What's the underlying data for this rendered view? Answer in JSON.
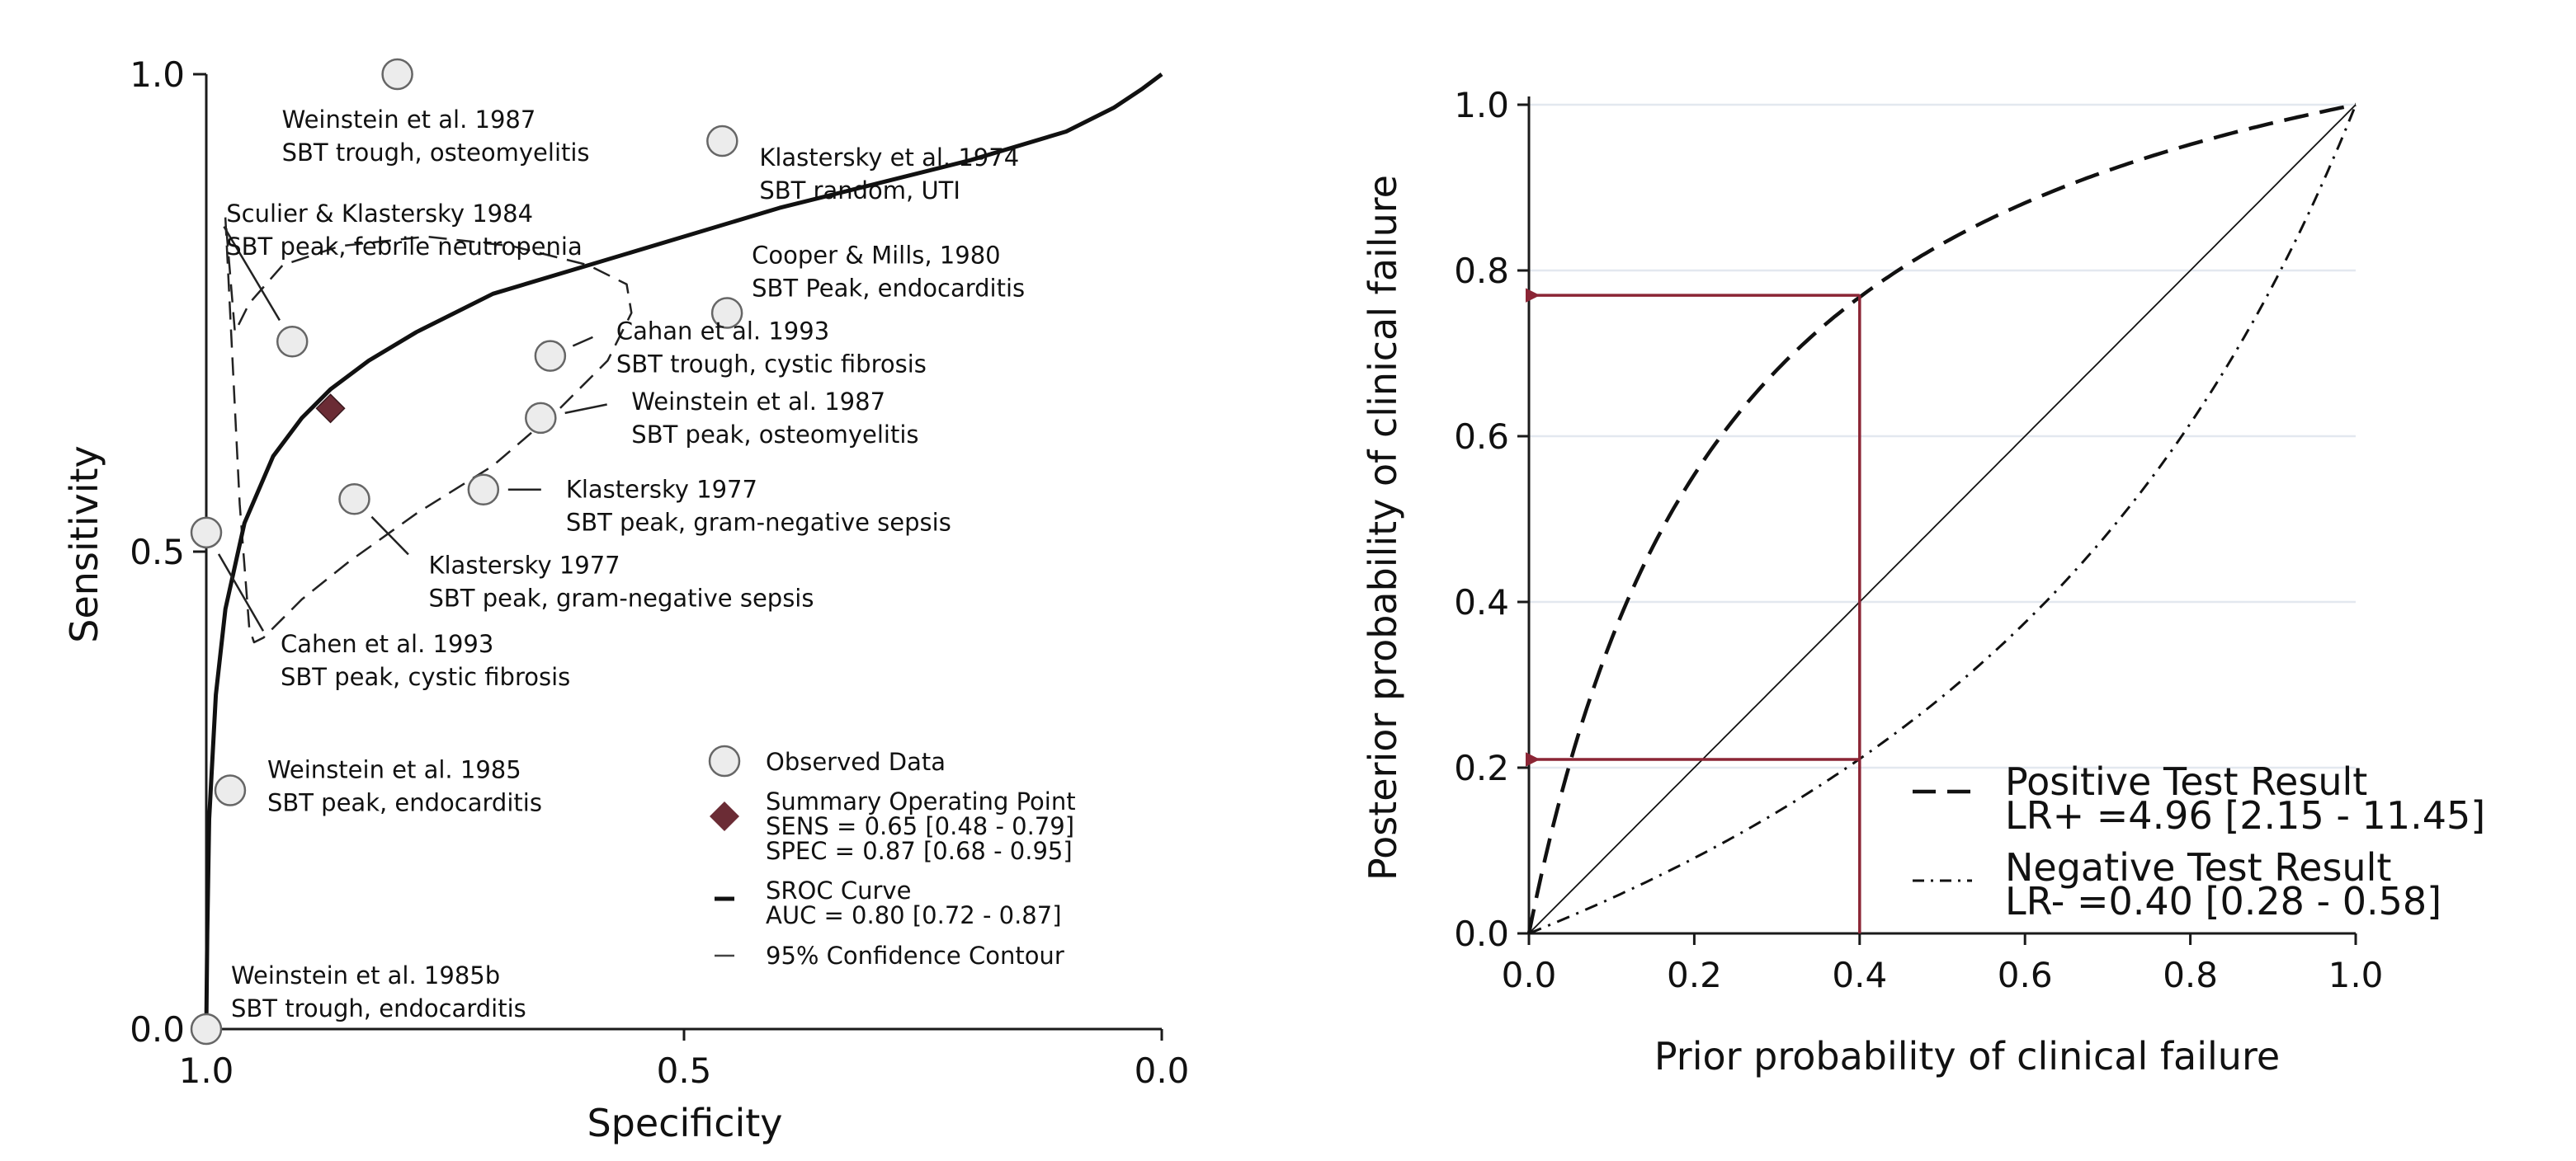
{
  "chart_data": [
    {
      "type": "scatter",
      "xlabel": "Specificity",
      "ylabel": "Sensitivity",
      "xlim": [
        1.0,
        0.0
      ],
      "ylim": [
        0.0,
        1.0
      ],
      "xticks": [
        "1.0",
        "0.5",
        "0.0"
      ],
      "yticks": [
        "0.0",
        "0.5",
        "1.0"
      ],
      "grid": false,
      "legend_position": "lower-right",
      "points": [
        {
          "specificity": 0.8,
          "sensitivity": 1.0,
          "label": [
            "Weinstein et al. 1987",
            "SBT trough, osteomyelitis"
          ]
        },
        {
          "specificity": 0.46,
          "sensitivity": 0.93,
          "label": [
            "Klastersky et al. 1974",
            "SBT random, UTI"
          ]
        },
        {
          "specificity": 0.91,
          "sensitivity": 0.72,
          "label": [
            "Sculier & Klastersky 1984",
            "SBT peak, febrile neutropenia"
          ]
        },
        {
          "specificity": 0.455,
          "sensitivity": 0.75,
          "label": [
            "Cooper & Mills, 1980",
            "SBT Peak, endocarditis"
          ]
        },
        {
          "specificity": 0.64,
          "sensitivity": 0.705,
          "label": [
            "Cahan et al. 1993",
            "SBT trough, cystic fibrosis"
          ]
        },
        {
          "specificity": 0.65,
          "sensitivity": 0.64,
          "label": [
            "Weinstein et al. 1987",
            "SBT peak, osteomyelitis"
          ]
        },
        {
          "specificity": 0.71,
          "sensitivity": 0.565,
          "label": [
            "Klastersky 1977",
            "SBT peak, gram-negative sepsis"
          ]
        },
        {
          "specificity": 0.845,
          "sensitivity": 0.555,
          "label": [
            "Klastersky 1977",
            "SBT peak, gram-negative sepsis"
          ]
        },
        {
          "specificity": 1.0,
          "sensitivity": 0.52,
          "label": [
            "Cahen et al. 1993",
            "SBT peak, cystic fibrosis"
          ]
        },
        {
          "specificity": 0.975,
          "sensitivity": 0.25,
          "label": [
            "Weinstein et al. 1985",
            "SBT peak, endocarditis"
          ]
        },
        {
          "specificity": 1.0,
          "sensitivity": 0.0,
          "label": [
            "Weinstein et al. 1985b",
            "SBT trough, endocarditis"
          ]
        }
      ],
      "summary_point": {
        "specificity": 0.87,
        "sensitivity": 0.65
      },
      "sroc_curve": [
        [
          1.0,
          0.0
        ],
        [
          0.999,
          0.1
        ],
        [
          0.997,
          0.22
        ],
        [
          0.99,
          0.35
        ],
        [
          0.98,
          0.44
        ],
        [
          0.96,
          0.53
        ],
        [
          0.93,
          0.6
        ],
        [
          0.9,
          0.64
        ],
        [
          0.87,
          0.67
        ],
        [
          0.83,
          0.7
        ],
        [
          0.78,
          0.73
        ],
        [
          0.7,
          0.77
        ],
        [
          0.6,
          0.8
        ],
        [
          0.5,
          0.83
        ],
        [
          0.4,
          0.86
        ],
        [
          0.3,
          0.885
        ],
        [
          0.2,
          0.91
        ],
        [
          0.1,
          0.94
        ],
        [
          0.05,
          0.965
        ],
        [
          0.02,
          0.985
        ],
        [
          0.0,
          1.0
        ]
      ],
      "confidence_contour": [
        [
          0.98,
          0.85
        ],
        [
          0.965,
          0.55
        ],
        [
          0.955,
          0.42
        ],
        [
          0.95,
          0.405
        ],
        [
          0.94,
          0.41
        ],
        [
          0.9,
          0.45
        ],
        [
          0.85,
          0.49
        ],
        [
          0.78,
          0.54
        ],
        [
          0.7,
          0.59
        ],
        [
          0.63,
          0.65
        ],
        [
          0.58,
          0.7
        ],
        [
          0.555,
          0.75
        ],
        [
          0.56,
          0.78
        ],
        [
          0.6,
          0.8
        ],
        [
          0.68,
          0.82
        ],
        [
          0.77,
          0.83
        ],
        [
          0.86,
          0.82
        ],
        [
          0.92,
          0.8
        ],
        [
          0.955,
          0.76
        ],
        [
          0.97,
          0.73
        ],
        [
          0.98,
          0.85
        ]
      ],
      "legend": [
        {
          "name": "Observed Data",
          "marker": "circle"
        },
        {
          "name": "Summary Operating Point",
          "lines": [
            "SENS = 0.65 [0.48 - 0.79]",
            "SPEC = 0.87 [0.68 - 0.95]"
          ],
          "marker": "diamond"
        },
        {
          "name": "SROC Curve",
          "lines": [
            "AUC = 0.80 [0.72 - 0.87]"
          ],
          "marker": "solid"
        },
        {
          "name": "95% Confidence Contour",
          "marker": "dashed"
        }
      ],
      "colors": {
        "marker_fill": "#ececec",
        "marker_stroke": "#666666",
        "summary": "#6b2c35",
        "line": "#111111"
      }
    },
    {
      "type": "line",
      "xlabel": "Prior probability of clinical failure",
      "ylabel": "Posterior probability of clinical failure",
      "xlim": [
        0.0,
        1.0
      ],
      "ylim": [
        0.0,
        1.0
      ],
      "xticks": [
        "0.0",
        "0.2",
        "0.4",
        "0.6",
        "0.8",
        "1.0"
      ],
      "yticks": [
        "0.0",
        "0.2",
        "0.4",
        "0.6",
        "0.8",
        "1.0"
      ],
      "grid": true,
      "legend_position": "lower-right",
      "series": [
        {
          "name": "Positive Test Result",
          "detail": "LR+ =4.96 [2.15 - 11.45]",
          "lr": 4.96,
          "style": "dashed"
        },
        {
          "name": "Negative Test Result",
          "detail": "LR- =0.40 [0.28 - 0.58]",
          "lr": 0.4,
          "style": "dashdot"
        },
        {
          "lr": 1.0,
          "style": "thin-solid"
        }
      ],
      "annotation": {
        "prior": 0.4,
        "posterior_positive": 0.77,
        "posterior_negative": 0.21,
        "color": "#8b2535"
      }
    }
  ]
}
